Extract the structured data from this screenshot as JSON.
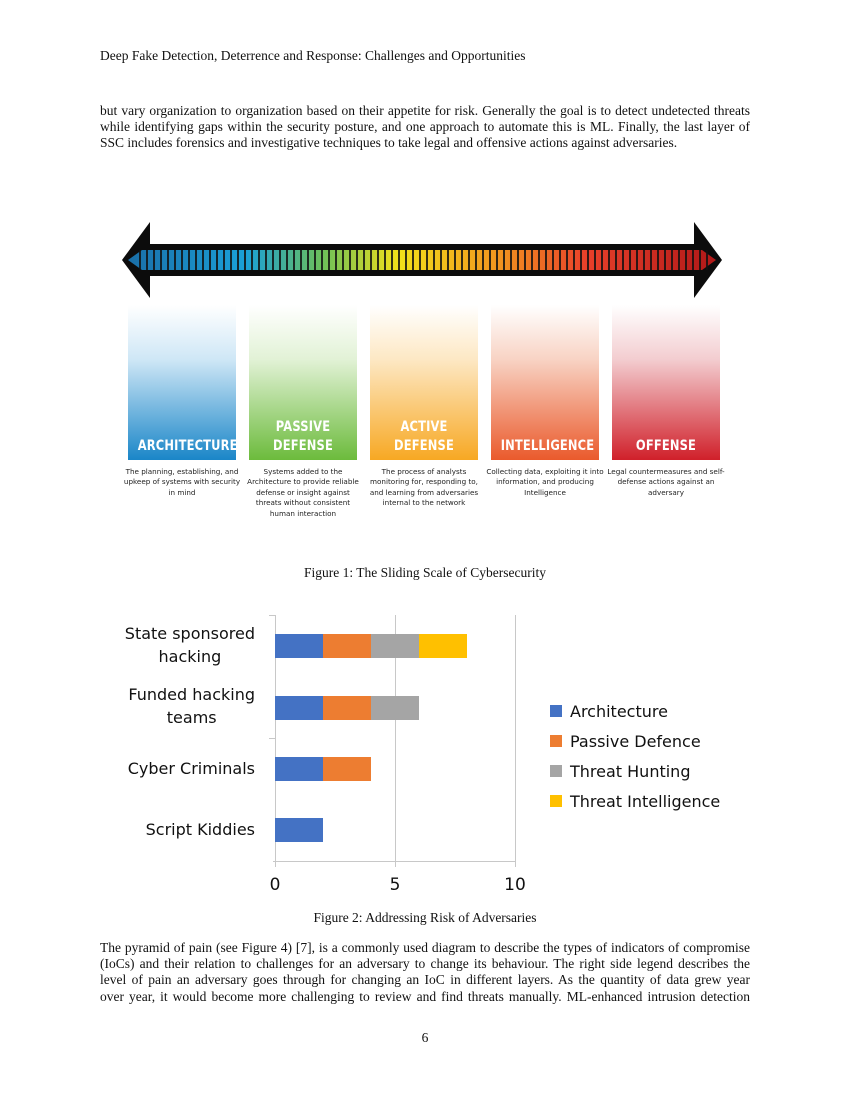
{
  "running_head": "Deep Fake Detection, Deterrence and Response: Challenges and Opportunities",
  "paragraph_top": {
    "lines": [
      "but vary organization to organization based on their appetite for risk. Generally the goal is to detect undetected threats",
      "while identifying gaps within the security posture, and one approach to automate this is ML. Finally, the last layer of",
      "SSC includes forensics and investigative techniques to take legal and offensive actions against adversaries."
    ]
  },
  "figure1": {
    "caption": "Figure 1: The Sliding Scale of Cybersecurity",
    "scale_icon": "double-headed-gradient-arrow",
    "columns": [
      {
        "title_lines": [
          "ARCHITECTURE"
        ],
        "color": "#1a86c8",
        "description": "The planning, establishing, and upkeep of systems with security in mind"
      },
      {
        "title_lines": [
          "PASSIVE",
          "DEFENSE"
        ],
        "color": "#6cbb3c",
        "description": "Systems added to the Architecture to provide reliable defense or insight against threats without consistent human interaction"
      },
      {
        "title_lines": [
          "ACTIVE",
          "DEFENSE"
        ],
        "color": "#f7a823",
        "description": "The process of analysts monitoring for, responding to, and learning from adversaries internal to the network"
      },
      {
        "title_lines": [
          "INTELLIGENCE"
        ],
        "color": "#ea5a2c",
        "description": "Collecting data, exploiting it into information, and producing Intelligence"
      },
      {
        "title_lines": [
          "OFFENSE"
        ],
        "color": "#d0202a",
        "description": "Legal countermeasures and self-defense actions against an adversary"
      }
    ]
  },
  "chart_data": {
    "type": "bar",
    "orientation": "horizontal",
    "stacked": true,
    "title": "",
    "xlabel": "",
    "ylabel": "",
    "xlim": [
      0,
      10
    ],
    "x_ticks": [
      "0",
      "5",
      "10"
    ],
    "grid": true,
    "legend_position": "right",
    "categories": [
      "State sponsored hacking",
      "Funded hacking teams",
      "Cyber Criminals",
      "Script Kiddies"
    ],
    "category_lines": [
      [
        "State sponsored",
        "hacking"
      ],
      [
        "Funded hacking",
        "teams"
      ],
      [
        "Cyber Criminals"
      ],
      [
        "Script Kiddies"
      ]
    ],
    "series": [
      {
        "name": "Architecture",
        "color": "#4472c4",
        "values": [
          2,
          2,
          2,
          2
        ]
      },
      {
        "name": "Passive Defence",
        "color": "#ed7d31",
        "values": [
          2,
          2,
          2,
          0
        ]
      },
      {
        "name": "Threat Hunting",
        "color": "#a5a5a5",
        "values": [
          2,
          2,
          0,
          0
        ]
      },
      {
        "name": "Threat Intelligence",
        "color": "#ffc000",
        "values": [
          2,
          0,
          0,
          0
        ]
      }
    ]
  },
  "figure2": {
    "caption": "Figure 2: Addressing Risk of Adversaries"
  },
  "paragraph_bottom": {
    "lines": [
      "The pyramid of pain (see Figure 4) [7], is a commonly used diagram to describe the types of indicators of compromise",
      "(IoCs) and their relation to challenges for an adversary to change its behaviour. The right side legend describes the",
      "level of pain an adversary goes through for changing an IoC in different layers. As the quantity of data grew year",
      "over year, it would become more challenging to review and find threats manually. ML-enhanced intrusion detection"
    ]
  },
  "page_number": "6"
}
